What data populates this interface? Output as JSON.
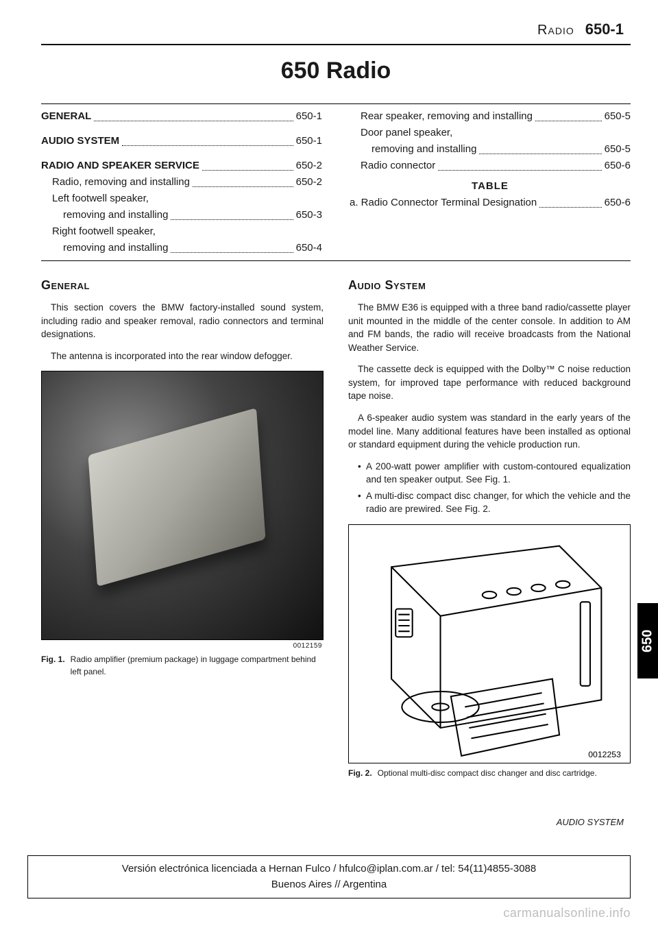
{
  "header": {
    "section_label": "Radio",
    "page_number": "650-1"
  },
  "title": "650 Radio",
  "toc": {
    "left": [
      {
        "label": "GENERAL",
        "page": "650-1",
        "style": "bold"
      },
      {
        "label": "AUDIO SYSTEM",
        "page": "650-1",
        "style": "bold",
        "gap_before": true
      },
      {
        "label": "RADIO AND SPEAKER SERVICE",
        "page": "650-2",
        "style": "bold-mixed",
        "gap_before": true
      },
      {
        "label": "Radio, removing and installing",
        "page": "650-2",
        "indent": 1
      },
      {
        "label": "Left footwell speaker,",
        "indent": 1,
        "no_page": true
      },
      {
        "label": "removing and installing",
        "page": "650-3",
        "indent": 2
      },
      {
        "label": "Right footwell speaker,",
        "indent": 1,
        "no_page": true
      },
      {
        "label": "removing and installing",
        "page": "650-4",
        "indent": 2
      }
    ],
    "right": [
      {
        "label": "Rear speaker, removing and installing",
        "page": "650-5",
        "indent": 1
      },
      {
        "label": "Door panel speaker,",
        "indent": 1,
        "no_page": true
      },
      {
        "label": "removing and installing",
        "page": "650-5",
        "indent": 2
      },
      {
        "label": "Radio connector",
        "page": "650-6",
        "indent": 1
      }
    ],
    "table_heading": "TABLE",
    "table_entries": [
      {
        "label": "a. Radio Connector Terminal Designation",
        "page": "650-6"
      }
    ]
  },
  "left_section": {
    "heading": "General",
    "paragraphs": [
      "This section covers the BMW factory-installed sound system, including radio and speaker removal, radio connectors and terminal designations.",
      "The antenna is incorporated into the rear window defogger."
    ],
    "figure": {
      "img_id": "0012159",
      "label": "Fig. 1.",
      "caption": "Radio amplifier (premium package) in luggage compartment behind left panel."
    }
  },
  "right_section": {
    "heading": "Audio System",
    "paragraphs": [
      "The BMW E36 is equipped with a three band radio/cassette player unit mounted in the middle of the center console. In addition to AM and FM bands, the radio will receive broadcasts from the National Weather Service.",
      "The cassette deck is equipped with the Dolby™ C noise reduction system, for improved tape performance with reduced background tape noise.",
      "A 6-speaker audio system was standard in the early years of the model line. Many additional features have been installed as optional or standard equipment during the vehicle production run."
    ],
    "bullets": [
      "A 200-watt power amplifier with custom-contoured equalization and ten speaker output. See Fig. 1.",
      "A multi-disc compact disc changer, for which the vehicle and the radio are prewired. See Fig. 2."
    ],
    "figure": {
      "img_id": "0012253",
      "label": "Fig. 2.",
      "caption": "Optional multi-disc compact disc changer and disc cartridge."
    }
  },
  "side_tab": "650",
  "footer_right": "AUDIO SYSTEM",
  "license": {
    "line1": "Versión electrónica licenciada a Hernan Fulco / hfulco@iplan.com.ar / tel: 54(11)4855-3088",
    "line2": "Buenos Aires // Argentina"
  },
  "watermark": "carmanualsonline.info"
}
